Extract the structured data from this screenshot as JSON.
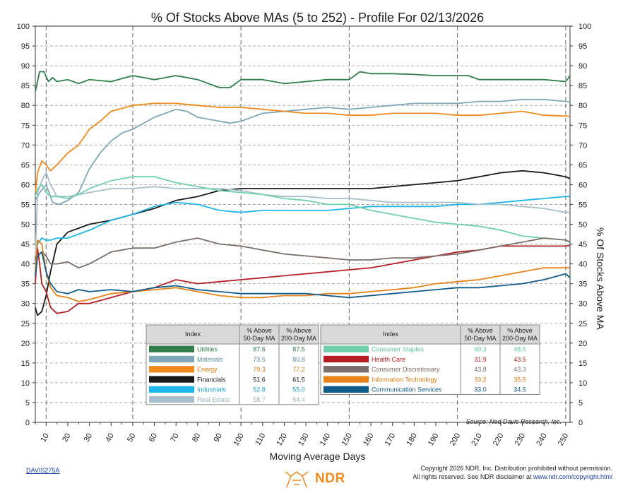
{
  "chart_data": {
    "type": "line",
    "title": "% Of Stocks Above MAs (5 to 252) - Profile For 02/13/2026",
    "xlabel": "Moving Average Days",
    "ylabel": "% Of Stocks Above MA",
    "xlim": [
      5,
      252
    ],
    "ylim": [
      0,
      100
    ],
    "x_ticks": [
      10,
      20,
      30,
      40,
      50,
      60,
      70,
      80,
      90,
      100,
      110,
      120,
      130,
      140,
      150,
      160,
      170,
      180,
      190,
      200,
      210,
      220,
      230,
      240,
      250
    ],
    "x_tick_labels": [
      "10",
      "20",
      "30",
      "40",
      "50",
      "60",
      "70",
      "80",
      "90",
      "100",
      "110",
      "120",
      "130",
      "140",
      "150",
      "160",
      "170",
      "180",
      "190",
      "200",
      "210",
      "220",
      "230",
      "240",
      "250"
    ],
    "y_ticks": [
      0,
      5,
      10,
      15,
      20,
      25,
      30,
      35,
      40,
      45,
      50,
      55,
      60,
      65,
      70,
      75,
      80,
      85,
      90,
      95,
      100
    ],
    "y_tick_labels": [
      "0",
      "5",
      "10",
      "15",
      "20",
      "25",
      "30",
      "35",
      "40",
      "45",
      "50",
      "55",
      "60",
      "65",
      "70",
      "75",
      "80",
      "85",
      "90",
      "95",
      "100"
    ],
    "vertical_dashed_lines": [
      10,
      50,
      100,
      150,
      200,
      250
    ],
    "series": [
      {
        "name": "Utilities",
        "color": "#2e7d4a",
        "x": [
          5,
          7,
          9,
          11,
          13,
          15,
          20,
          25,
          30,
          40,
          50,
          55,
          60,
          70,
          80,
          90,
          95,
          100,
          110,
          120,
          130,
          140,
          150,
          155,
          160,
          170,
          180,
          190,
          200,
          205,
          210,
          220,
          230,
          240,
          250,
          252
        ],
        "values": [
          83.5,
          88.5,
          88.5,
          86,
          87,
          86,
          86.5,
          85.5,
          86.5,
          86,
          87.5,
          87,
          86.5,
          87.5,
          86.5,
          84.5,
          84.5,
          86.5,
          86.5,
          85.5,
          86,
          86.5,
          86.5,
          88.5,
          88,
          88,
          87.8,
          87.5,
          87.5,
          87.5,
          86.5,
          86.5,
          86.5,
          86.5,
          86,
          87.5
        ]
      },
      {
        "name": "Materials",
        "color": "#7fa7b8",
        "x": [
          5,
          7,
          10,
          13,
          16,
          20,
          25,
          30,
          35,
          40,
          45,
          50,
          60,
          70,
          75,
          80,
          90,
          95,
          100,
          110,
          120,
          130,
          140,
          150,
          160,
          170,
          180,
          190,
          200,
          210,
          220,
          230,
          240,
          250,
          252
        ],
        "values": [
          56,
          58,
          60,
          55.5,
          55,
          56,
          58,
          64,
          68,
          71,
          73,
          74,
          77,
          79,
          78.5,
          77,
          76,
          75.5,
          76,
          78,
          78.5,
          79,
          79.5,
          79,
          79.5,
          80,
          80.5,
          80.5,
          80.5,
          81,
          81,
          81.5,
          81.5,
          81,
          80.8
        ]
      },
      {
        "name": "Energy",
        "color": "#f08a1c",
        "x": [
          5,
          6,
          8,
          10,
          12,
          15,
          20,
          25,
          30,
          35,
          40,
          50,
          60,
          70,
          80,
          90,
          100,
          110,
          120,
          130,
          140,
          150,
          160,
          170,
          180,
          190,
          200,
          210,
          220,
          230,
          240,
          250,
          252
        ],
        "values": [
          58,
          63,
          66,
          65,
          63.5,
          65,
          68,
          70,
          74,
          76,
          78.5,
          80,
          80.5,
          80.5,
          80,
          79.5,
          79.5,
          79,
          78.5,
          78,
          78,
          77.5,
          77.5,
          78,
          78,
          78,
          77.5,
          77.5,
          78,
          78.5,
          77.5,
          77.3,
          77.2
        ]
      },
      {
        "name": "Financials",
        "color": "#1a1a1a",
        "x": [
          5,
          6,
          8,
          10,
          12,
          15,
          20,
          25,
          30,
          40,
          50,
          60,
          70,
          80,
          90,
          100,
          110,
          120,
          130,
          140,
          150,
          160,
          170,
          180,
          190,
          200,
          210,
          220,
          230,
          240,
          250,
          252
        ],
        "values": [
          29,
          27,
          28,
          32,
          38,
          45,
          48,
          49,
          50,
          51,
          52.5,
          54,
          56,
          57,
          58.5,
          59,
          59,
          59,
          59,
          59,
          59,
          59,
          59.5,
          60,
          60.5,
          61,
          62,
          63,
          63.5,
          63,
          62,
          61.5
        ]
      },
      {
        "name": "Industrials",
        "color": "#1fb6ea",
        "x": [
          5,
          6,
          8,
          10,
          12,
          15,
          20,
          25,
          30,
          40,
          50,
          60,
          70,
          80,
          90,
          100,
          110,
          120,
          130,
          140,
          150,
          160,
          170,
          180,
          190,
          200,
          210,
          220,
          230,
          240,
          250,
          252
        ],
        "values": [
          36,
          45,
          46.5,
          46,
          46,
          46.5,
          46.5,
          47.5,
          48.5,
          51,
          52.5,
          54.5,
          55.5,
          55,
          53.5,
          53,
          53.5,
          53.5,
          53.5,
          53.5,
          54,
          54.5,
          54.5,
          54.5,
          54.5,
          55,
          55,
          55.5,
          56,
          56.5,
          57,
          57
        ]
      },
      {
        "name": "Real Estate",
        "color": "#a6bfcb",
        "x": [
          5,
          6,
          8,
          10,
          12,
          15,
          20,
          25,
          30,
          40,
          50,
          60,
          70,
          80,
          90,
          100,
          110,
          120,
          130,
          140,
          150,
          160,
          170,
          180,
          190,
          200,
          210,
          220,
          230,
          240,
          250,
          252
        ],
        "values": [
          42,
          58,
          61,
          63,
          60,
          57,
          57,
          57.5,
          58,
          59,
          59,
          59.5,
          59,
          59,
          59,
          58.5,
          57.5,
          57,
          57,
          56.5,
          56.5,
          56,
          55.5,
          55.5,
          55.5,
          55.5,
          55,
          55,
          54.5,
          54,
          53,
          53
        ]
      },
      {
        "name": "Consumer Staples",
        "color": "#6fd1ac",
        "x": [
          5,
          6,
          8,
          10,
          12,
          15,
          20,
          25,
          30,
          40,
          50,
          60,
          70,
          80,
          90,
          100,
          110,
          120,
          130,
          140,
          150,
          160,
          170,
          180,
          190,
          200,
          210,
          220,
          230,
          240,
          250,
          252
        ],
        "values": [
          57,
          59,
          60,
          58,
          57,
          57,
          56.5,
          57.5,
          59,
          61,
          62,
          62,
          60.5,
          59.5,
          58.5,
          58,
          57.5,
          56.5,
          56,
          55,
          55,
          53.5,
          52.5,
          51.5,
          50.5,
          50,
          49.5,
          48.5,
          47,
          46.5,
          46,
          45.5
        ]
      },
      {
        "name": "Health Care",
        "color": "#b51f24",
        "x": [
          5,
          6,
          7,
          8,
          10,
          12,
          15,
          20,
          25,
          30,
          40,
          50,
          60,
          70,
          80,
          90,
          100,
          110,
          120,
          130,
          140,
          150,
          160,
          170,
          180,
          190,
          200,
          210,
          220,
          230,
          240,
          250,
          252
        ],
        "values": [
          35,
          44,
          40,
          35,
          33,
          29,
          27.5,
          28,
          30,
          30,
          31.5,
          33,
          34,
          36,
          35,
          35.5,
          36,
          36.5,
          37,
          37.5,
          38,
          38.5,
          39,
          40,
          41,
          42,
          43,
          43.5,
          44.5,
          44.5,
          44.5,
          44.5,
          44.7
        ]
      },
      {
        "name": "Consumer Discretionary",
        "color": "#7b6e6a",
        "x": [
          5,
          6,
          8,
          10,
          12,
          15,
          20,
          25,
          30,
          40,
          50,
          60,
          70,
          80,
          90,
          100,
          110,
          120,
          130,
          140,
          150,
          160,
          170,
          180,
          190,
          200,
          210,
          220,
          230,
          240,
          250,
          252
        ],
        "values": [
          37,
          42,
          43,
          42,
          40,
          40,
          40.5,
          39,
          40,
          43,
          44,
          44,
          45.5,
          46.5,
          45,
          44.5,
          43.5,
          42.5,
          42,
          41.5,
          41,
          41,
          41.5,
          41.5,
          42,
          42.5,
          43.5,
          44.5,
          45.5,
          46.5,
          46,
          45.5
        ]
      },
      {
        "name": "Information Technology",
        "color": "#e8821a",
        "x": [
          5,
          6,
          8,
          10,
          12,
          15,
          20,
          25,
          30,
          40,
          50,
          60,
          70,
          80,
          90,
          100,
          110,
          120,
          130,
          140,
          150,
          160,
          170,
          180,
          190,
          200,
          210,
          220,
          230,
          240,
          250,
          252
        ],
        "values": [
          38,
          46,
          45,
          38,
          34,
          32,
          31.5,
          30.5,
          31,
          32.5,
          33,
          33.5,
          34,
          33,
          32,
          31.5,
          31.5,
          32,
          32,
          32.5,
          32.5,
          33,
          33.5,
          34,
          35,
          35.5,
          36,
          37,
          38,
          39,
          39,
          39
        ]
      },
      {
        "name": "Communication Services",
        "color": "#0f5b8c",
        "x": [
          5,
          6,
          8,
          10,
          12,
          15,
          20,
          25,
          30,
          40,
          50,
          60,
          70,
          80,
          90,
          100,
          110,
          120,
          130,
          140,
          150,
          160,
          170,
          180,
          190,
          200,
          210,
          220,
          230,
          240,
          250,
          252
        ],
        "values": [
          37,
          42,
          43,
          38,
          35,
          33,
          32.5,
          33.5,
          33,
          33.5,
          33,
          34,
          34.5,
          33.5,
          33,
          32.5,
          32.5,
          32.5,
          32.5,
          32,
          31.5,
          32,
          32.5,
          33,
          33.5,
          34,
          34,
          34.5,
          35,
          36,
          37.5,
          36.5
        ]
      }
    ],
    "legend_left": {
      "headers": [
        "Index",
        "% Above\n50-Day MA",
        "% Above\n200-Day MA"
      ],
      "rows": [
        {
          "name": "Utilities",
          "color": "#2e7d4a",
          "text_color": "#2e7d4a",
          "v50": "87.6",
          "v200": "87.5"
        },
        {
          "name": "Materials",
          "color": "#7fa7b8",
          "text_color": "#5f8ea3",
          "v50": "73.5",
          "v200": "80.8"
        },
        {
          "name": "Energy",
          "color": "#f08a1c",
          "text_color": "#e07a10",
          "v50": "79.3",
          "v200": "77.2"
        },
        {
          "name": "Financials",
          "color": "#1a1a1a",
          "text_color": "#1a1a1a",
          "v50": "51.6",
          "v200": "61.5"
        },
        {
          "name": "Industrials",
          "color": "#1fb6ea",
          "text_color": "#1aa6dc",
          "v50": "52.8",
          "v200": "55.0"
        },
        {
          "name": "Real Estate",
          "color": "#a6bfcb",
          "text_color": "#9ab4c2",
          "v50": "58.7",
          "v200": "54.4"
        }
      ]
    },
    "legend_right": {
      "headers": [
        "Index",
        "% Above\n50-Day MA",
        "% Above\n200-Day MA"
      ],
      "rows": [
        {
          "name": "Consumer Staples",
          "color": "#6fd1ac",
          "text_color": "#5cc39b",
          "v50": "60.3",
          "v200": "48.5"
        },
        {
          "name": "Health Care",
          "color": "#b51f24",
          "text_color": "#b51f24",
          "v50": "31.9",
          "v200": "43.5"
        },
        {
          "name": "Consumer Discretionary",
          "color": "#7b6e6a",
          "text_color": "#7b6e6a",
          "v50": "43.8",
          "v200": "43.3"
        },
        {
          "name": "Information Technology",
          "color": "#e8821a",
          "text_color": "#e07a10",
          "v50": "33.2",
          "v200": "35.5"
        },
        {
          "name": "Communication Services",
          "color": "#0f5b8c",
          "text_color": "#0f5b8c",
          "v50": "33.0",
          "v200": "34.5"
        }
      ]
    }
  },
  "footer": {
    "source": "Source:  Ned Davis Research, Inc.",
    "chart_id": "DAVIS275A",
    "copyright_line1": "Copyright 2026 NDR, Inc. Distribution prohibited without permission.",
    "copyright_line2_prefix": "All rights reserved. See NDR disclaimer at ",
    "copyright_link": "www.ndr.com/copyright.html",
    "logo_text": "NDR"
  }
}
